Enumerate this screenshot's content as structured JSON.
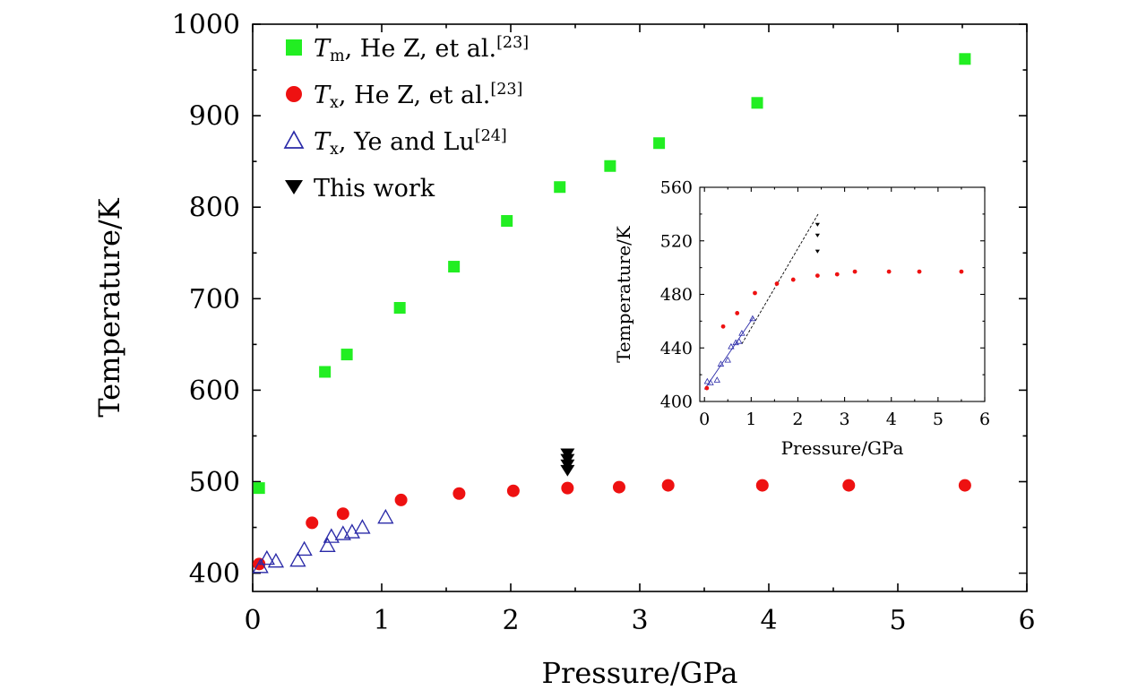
{
  "chart_data": [
    {
      "id": "main",
      "type": "scatter",
      "xlabel": "Pressure/GPa",
      "ylabel": "Temperature/K",
      "xlim": [
        0,
        6
      ],
      "ylim": [
        380,
        1000
      ],
      "xticks": [
        0,
        1,
        2,
        3,
        4,
        5,
        6
      ],
      "yticks": [
        400,
        500,
        600,
        700,
        800,
        900,
        1000
      ],
      "grid": false,
      "legend_position": "top-left",
      "series": [
        {
          "key": "tm-he",
          "marker": "square",
          "color": "#22ee22",
          "legend": {
            "sym": "T",
            "sub": "m",
            "text": ", He Z, et al.",
            "ref": "[23]"
          },
          "points": [
            [
              0.05,
              493
            ],
            [
              0.56,
              620
            ],
            [
              0.73,
              639
            ],
            [
              1.14,
              690
            ],
            [
              1.56,
              735
            ],
            [
              1.97,
              785
            ],
            [
              2.38,
              822
            ],
            [
              2.77,
              845
            ],
            [
              3.15,
              870
            ],
            [
              3.91,
              914
            ],
            [
              5.52,
              962
            ]
          ]
        },
        {
          "key": "tx-he",
          "marker": "circle",
          "color": "#ee1111",
          "legend": {
            "sym": "T",
            "sub": "x",
            "text": ", He Z, et al.",
            "ref": "[23]"
          },
          "points": [
            [
              0.05,
              410
            ],
            [
              0.46,
              455
            ],
            [
              0.7,
              465
            ],
            [
              1.15,
              480
            ],
            [
              1.6,
              487
            ],
            [
              2.02,
              490
            ],
            [
              2.44,
              493
            ],
            [
              2.84,
              494
            ],
            [
              3.22,
              496
            ],
            [
              3.95,
              496
            ],
            [
              4.62,
              496
            ],
            [
              5.52,
              496
            ]
          ]
        },
        {
          "key": "tx-ye",
          "marker": "triangle-open",
          "color": "#2a2aa8",
          "legend": {
            "sym": "T",
            "sub": "x",
            "text": ", Ye and Lu",
            "ref": "[24]"
          },
          "points": [
            [
              0.06,
              407
            ],
            [
              0.11,
              416
            ],
            [
              0.18,
              413
            ],
            [
              0.35,
              414
            ],
            [
              0.4,
              426
            ],
            [
              0.58,
              430
            ],
            [
              0.61,
              440
            ],
            [
              0.7,
              443
            ],
            [
              0.77,
              445
            ],
            [
              0.85,
              450
            ],
            [
              1.03,
              461
            ]
          ]
        },
        {
          "key": "this-work",
          "marker": "triangle-down",
          "color": "#000000",
          "legend": {
            "sym": "",
            "sub": "",
            "text": "This work",
            "ref": ""
          },
          "points": [
            [
              2.44,
              530
            ],
            [
              2.44,
              524
            ],
            [
              2.44,
              518
            ],
            [
              2.44,
              512
            ]
          ]
        }
      ]
    },
    {
      "id": "inset",
      "type": "scatter",
      "xlabel": "Pressure/GPa",
      "ylabel": "Temperature/K",
      "xlim": [
        -0.1,
        6
      ],
      "ylim": [
        400,
        560
      ],
      "xticks": [
        0,
        1,
        2,
        3,
        4,
        5,
        6
      ],
      "yticks": [
        400,
        440,
        480,
        520,
        560
      ],
      "grid": false,
      "series": [
        {
          "key": "tx-he",
          "marker": "circle",
          "color": "#ee1111",
          "points": [
            [
              0.05,
              410
            ],
            [
              0.4,
              456
            ],
            [
              0.7,
              466
            ],
            [
              1.08,
              481
            ],
            [
              1.55,
              488
            ],
            [
              1.9,
              491
            ],
            [
              2.42,
              494
            ],
            [
              2.84,
              495
            ],
            [
              3.22,
              497
            ],
            [
              3.95,
              497
            ],
            [
              4.6,
              497
            ],
            [
              5.5,
              497
            ]
          ]
        },
        {
          "key": "tx-ye",
          "marker": "triangle-open",
          "color": "#2a2aa8",
          "points": [
            [
              0.06,
              415
            ],
            [
              0.13,
              414
            ],
            [
              0.27,
              416
            ],
            [
              0.35,
              428
            ],
            [
              0.5,
              431
            ],
            [
              0.57,
              441
            ],
            [
              0.67,
              444
            ],
            [
              0.74,
              445
            ],
            [
              0.8,
              451
            ],
            [
              1.03,
              462
            ]
          ]
        },
        {
          "key": "this-work",
          "marker": "triangle-down",
          "color": "#000000",
          "points": [
            [
              2.42,
              532
            ],
            [
              2.42,
              524
            ],
            [
              2.42,
              512
            ]
          ]
        }
      ],
      "lines": [
        {
          "key": "fit-ye",
          "style": "solid",
          "color": "#2a2aa8",
          "points": [
            [
              0,
              409
            ],
            [
              1.05,
              463
            ]
          ]
        },
        {
          "key": "fit-dashed",
          "style": "dashed",
          "color": "#000000",
          "points": [
            [
              0.8,
              443
            ],
            [
              2.45,
              541
            ]
          ]
        }
      ]
    }
  ]
}
